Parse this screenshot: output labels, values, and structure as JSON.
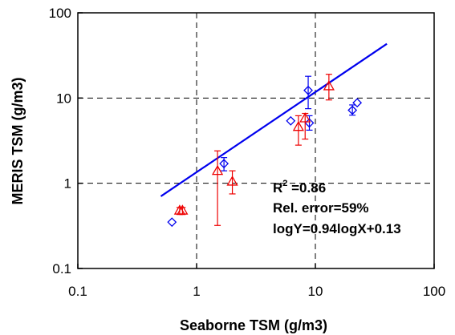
{
  "chart_data": {
    "type": "scatter",
    "xlabel": "Seaborne TSM (g/m3)",
    "ylabel": "MERIS TSM (g/m3)",
    "xscale": "log",
    "yscale": "log",
    "xlim": [
      0.1,
      100
    ],
    "ylim": [
      0.1,
      100
    ],
    "x_ticks": [
      0.1,
      1,
      10,
      100
    ],
    "x_tick_labels": [
      "0.1",
      "1",
      "10",
      "100"
    ],
    "y_ticks": [
      0.1,
      1,
      10,
      100
    ],
    "y_tick_labels": [
      "0.1",
      "1",
      "10",
      "100"
    ],
    "grid": "dashed at decades",
    "series": [
      {
        "marker": "diamond",
        "color": "#0000ee",
        "points": [
          {
            "x": 0.62,
            "y": 0.35
          },
          {
            "x": 1.7,
            "y": 1.7,
            "ylow": 1.4,
            "yhigh": 2.0
          },
          {
            "x": 6.2,
            "y": 5.4
          },
          {
            "x": 8.7,
            "y": 12.3,
            "ylow": 7.5,
            "yhigh": 18.0
          },
          {
            "x": 8.9,
            "y": 5.1,
            "ylow": 4.2,
            "yhigh": 6.2
          },
          {
            "x": 20.5,
            "y": 7.2,
            "ylow": 6.3,
            "yhigh": 8.3
          },
          {
            "x": 22.5,
            "y": 8.8
          }
        ]
      },
      {
        "marker": "triangle",
        "color": "#ee0000",
        "points": [
          {
            "x": 0.72,
            "y": 0.48,
            "ylow": 0.43,
            "yhigh": 0.52
          },
          {
            "x": 0.76,
            "y": 0.48,
            "ylow": 0.43,
            "yhigh": 0.52
          },
          {
            "x": 1.5,
            "y": 1.4,
            "ylow": 0.32,
            "yhigh": 2.4
          },
          {
            "x": 2.0,
            "y": 1.05,
            "ylow": 0.75,
            "yhigh": 1.4
          },
          {
            "x": 7.2,
            "y": 4.6,
            "ylow": 2.8,
            "yhigh": 6.2
          },
          {
            "x": 8.2,
            "y": 5.8,
            "ylow": 3.3,
            "yhigh": 6.6
          },
          {
            "x": 13.0,
            "y": 13.8,
            "ylow": 9.5,
            "yhigh": 19.0
          }
        ]
      }
    ],
    "fit_line": {
      "color": "#0000ee",
      "x": [
        0.5,
        40
      ],
      "equation": "logY=0.94logX+0.13",
      "slope": 0.94,
      "intercept": 0.13
    },
    "annotations": {
      "r2_label": "R",
      "r2_sup": "2",
      "r2_value": " =0.86",
      "rel_error": "Rel. error=59%",
      "equation": "logY=0.94logX+0.13"
    }
  }
}
